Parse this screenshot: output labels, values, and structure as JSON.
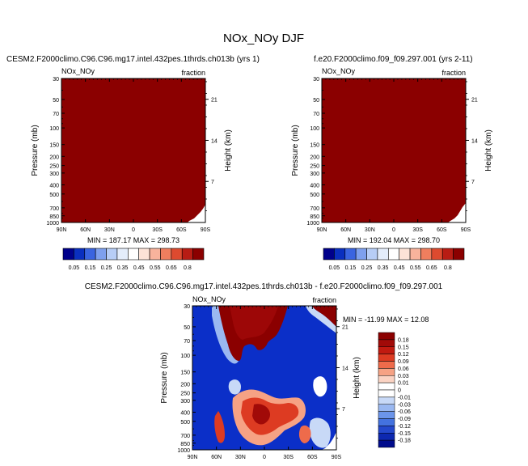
{
  "figure": {
    "title": "NOx_NOy DJF"
  },
  "chart_data": [
    {
      "type": "heatmap",
      "title": "CESM2.F2000climo.C96.C96.mg17.intel.432pes.1thrds.ch013b (yrs 1)",
      "left_label": "NOx_NOy",
      "right_label": "fraction",
      "ylabel": "Pressure (mb)",
      "ylabel_right": "Height (km)",
      "x_ticks": [
        "90N",
        "60N",
        "30N",
        "0",
        "30S",
        "60S",
        "90S"
      ],
      "y_ticks": [
        "30",
        "50",
        "70",
        "100",
        "150",
        "200",
        "250",
        "300",
        "400",
        "500",
        "700",
        "850",
        "1000"
      ],
      "right_ticks": [
        "21",
        "14",
        "7"
      ],
      "stats": "MIN = 187.17   MAX = 298.73",
      "colorbar": [
        "0.05",
        "0.15",
        "0.25",
        "0.35",
        "0.45",
        "0.55",
        "0.65",
        "0.8"
      ]
    },
    {
      "type": "heatmap",
      "title": "f.e20.F2000climo.f09_f09.297.001 (yrs 2-11)",
      "left_label": "NOx_NOy",
      "right_label": "fraction",
      "ylabel": "Pressure (mb)",
      "ylabel_right": "Height (km)",
      "x_ticks": [
        "90N",
        "60N",
        "30N",
        "0",
        "30S",
        "60S",
        "90S"
      ],
      "y_ticks": [
        "30",
        "50",
        "70",
        "100",
        "150",
        "200",
        "250",
        "300",
        "400",
        "500",
        "700",
        "850",
        "1000"
      ],
      "right_ticks": [
        "21",
        "14",
        "7"
      ],
      "stats": "MIN = 192.04   MAX = 298.70",
      "colorbar": [
        "0.05",
        "0.15",
        "0.25",
        "0.35",
        "0.45",
        "0.55",
        "0.65",
        "0.8"
      ]
    },
    {
      "type": "heatmap",
      "title": "CESM2.F2000climo.C96.C96.mg17.intel.432pes.1thrds.ch013b - f.e20.F2000climo.f09_f09.297.001",
      "left_label": "NOx_NOy",
      "right_label": "fraction",
      "ylabel": "Pressure (mb)",
      "ylabel_right": "Height (km)",
      "x_ticks": [
        "90N",
        "60N",
        "30N",
        "0",
        "30S",
        "60S",
        "90S"
      ],
      "y_ticks": [
        "30",
        "50",
        "70",
        "100",
        "150",
        "200",
        "250",
        "300",
        "400",
        "500",
        "700",
        "850",
        "1000"
      ],
      "right_ticks": [
        "21",
        "14",
        "7"
      ],
      "stats": "MIN = -11.99   MAX =  12.08",
      "colorbar": [
        "0.18",
        "0.15",
        "0.12",
        "0.09",
        "0.06",
        "0.03",
        "0.01",
        "0",
        "-0.01",
        "-0.03",
        "-0.06",
        "-0.09",
        "-0.12",
        "-0.15",
        "-0.18"
      ]
    }
  ],
  "colors": {
    "fill_dark_red": "#8b0000",
    "fill_blue": "#0b2fc8",
    "seq_colorbar": [
      "#00008b",
      "#0a2fbf",
      "#3a64e0",
      "#7ea0ee",
      "#b7cdf6",
      "#e4edfb",
      "#ffffff",
      "#fde3d7",
      "#f8b39c",
      "#ef7e5e",
      "#dd4a2f",
      "#b81c14",
      "#8b0000"
    ],
    "div_colorbar": [
      "#8b0000",
      "#a10a08",
      "#c11a10",
      "#dd3b22",
      "#ee6b4b",
      "#f6a284",
      "#fbd3c3",
      "#ffffff",
      "#ffffff",
      "#c8d9f7",
      "#9ab8f1",
      "#6c95ea",
      "#4472df",
      "#2448cc",
      "#0d28b0",
      "#000b8c"
    ]
  }
}
